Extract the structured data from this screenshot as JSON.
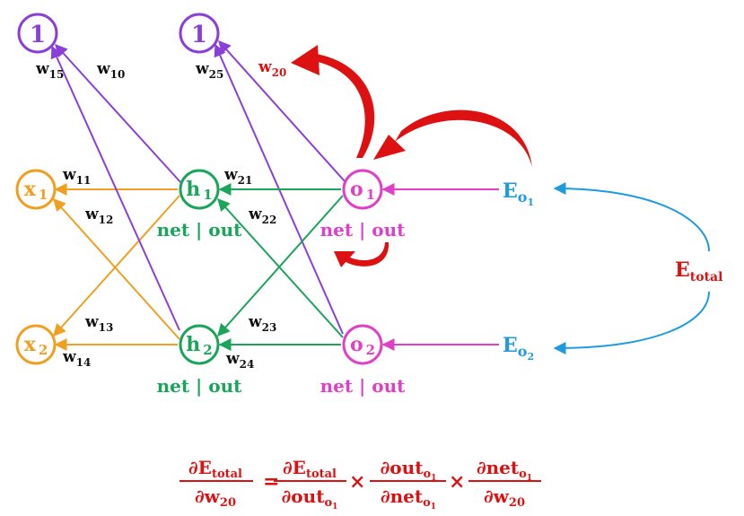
{
  "colors": {
    "bias": "#8b3fd9",
    "input": "#f0a020",
    "hidden": "#1aa55a",
    "output": "#e040c8",
    "error": "#1e9be0",
    "highlight": "#dd1111",
    "text": "#111111"
  },
  "nodes": {
    "bias1": "1",
    "bias2": "1",
    "x1": {
      "base": "x",
      "sub": "1"
    },
    "x2": {
      "base": "x",
      "sub": "2"
    },
    "h1": {
      "base": "h",
      "sub": "1"
    },
    "h2": {
      "base": "h",
      "sub": "2"
    },
    "o1": {
      "base": "o",
      "sub": "1"
    },
    "o2": {
      "base": "o",
      "sub": "2"
    }
  },
  "node_captions": {
    "h1": "net | out",
    "h2": "net | out",
    "o1": "net | out",
    "o2": "net | out"
  },
  "weights": {
    "w15": {
      "base": "w",
      "sub": "15"
    },
    "w10": {
      "base": "w",
      "sub": "10"
    },
    "w25": {
      "base": "w",
      "sub": "25"
    },
    "w20": {
      "base": "w",
      "sub": "20"
    },
    "w11": {
      "base": "w",
      "sub": "11"
    },
    "w12": {
      "base": "w",
      "sub": "12"
    },
    "w13": {
      "base": "w",
      "sub": "13"
    },
    "w14": {
      "base": "w",
      "sub": "14"
    },
    "w21": {
      "base": "w",
      "sub": "21"
    },
    "w22": {
      "base": "w",
      "sub": "22"
    },
    "w23": {
      "base": "w",
      "sub": "23"
    },
    "w24": {
      "base": "w",
      "sub": "24"
    }
  },
  "errors": {
    "eo1": {
      "base": "E",
      "sub": "o",
      "subsub": "1"
    },
    "eo2": {
      "base": "E",
      "sub": "o",
      "subsub": "2"
    },
    "etotal": {
      "base": "E",
      "sub": "total"
    }
  },
  "formula": {
    "lhs": {
      "num": "∂E",
      "num_sub": "total",
      "den": "∂w",
      "den_sub": "20"
    },
    "equals": "=",
    "times": "×",
    "term1": {
      "num": "∂E",
      "num_sub": "total",
      "den": "∂out",
      "den_sub": "o",
      "den_subsub": "1"
    },
    "term2": {
      "num": "∂out",
      "num_sub": "o",
      "num_subsub": "1",
      "den": "∂net",
      "den_sub": "o",
      "den_subsub": "1"
    },
    "term3": {
      "num": "∂net",
      "num_sub": "o",
      "num_subsub": "1",
      "den": "∂w",
      "den_sub": "20"
    }
  }
}
